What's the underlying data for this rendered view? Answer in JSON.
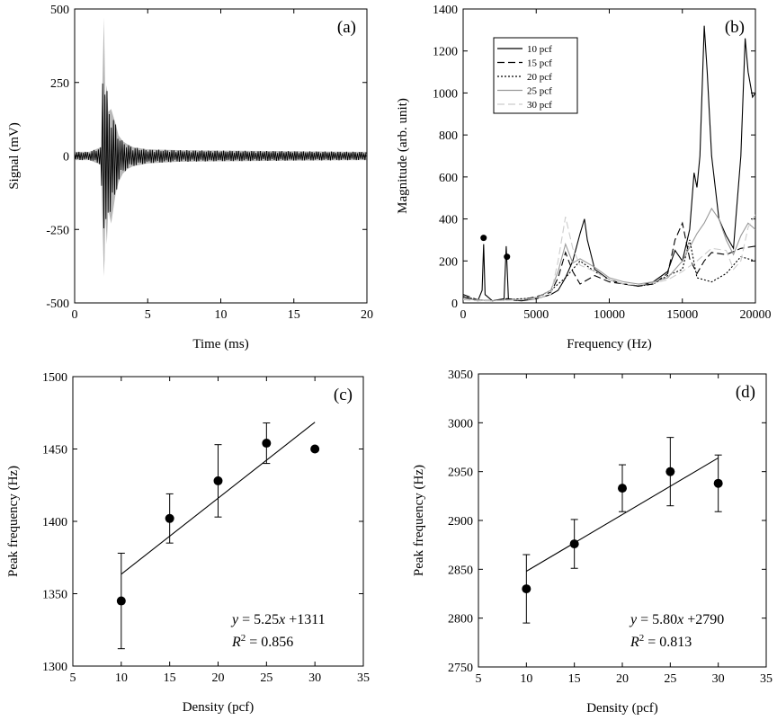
{
  "chart_data": [
    {
      "id": "a",
      "type": "line",
      "panel_label": "(a)",
      "xlabel": "Time (ms)",
      "ylabel": "Signal (mV)",
      "xlim": [
        0,
        20
      ],
      "ylim": [
        -500,
        500
      ],
      "xticks": [
        0,
        5,
        10,
        15,
        20
      ],
      "yticks": [
        -500,
        -250,
        0,
        250,
        500
      ],
      "series": [
        {
          "x": [
            0,
            1,
            1.8,
            2.0,
            2.05,
            2.1,
            2.2,
            2.3,
            2.5,
            2.8,
            3.0,
            3.3,
            3.6,
            4.0,
            5.0,
            7.0,
            10.0,
            15.0,
            20.0
          ],
          "y_upper": [
            14,
            14,
            30,
            470,
            340,
            200,
            240,
            150,
            160,
            110,
            70,
            50,
            40,
            30,
            22,
            20,
            18,
            16,
            14
          ],
          "y_lower": [
            -14,
            -14,
            -30,
            -410,
            -350,
            -200,
            -300,
            -180,
            -230,
            -130,
            -90,
            -60,
            -45,
            -35,
            -25,
            -20,
            -18,
            -16,
            -14
          ]
        }
      ]
    },
    {
      "id": "b",
      "type": "line",
      "panel_label": "(b)",
      "xlabel": "Frequency (Hz)",
      "ylabel": "Magnitude (arb. unit)",
      "xlim": [
        0,
        20000
      ],
      "ylim": [
        0,
        1400
      ],
      "xticks": [
        0,
        5000,
        10000,
        15000,
        20000
      ],
      "yticks": [
        0,
        200,
        400,
        600,
        800,
        1000,
        1200,
        1400
      ],
      "legend": {
        "position": "top-left",
        "entries": [
          "10 pcf",
          "15 pcf",
          "20 pcf",
          "25 pcf",
          "30 pcf"
        ]
      },
      "markers": [
        {
          "x": 1400,
          "y": 310
        },
        {
          "x": 3000,
          "y": 220
        }
      ],
      "series": [
        {
          "name": "10 pcf",
          "color": "#000000",
          "dash": "",
          "x": [
            0,
            500,
            1000,
            1300,
            1400,
            1500,
            2000,
            2800,
            2950,
            3100,
            4000,
            5000,
            6000,
            6500,
            7000,
            7500,
            8000,
            8300,
            8500,
            9000,
            10000,
            11000,
            12000,
            13000,
            14000,
            14500,
            15000,
            15500,
            15800,
            16000,
            16200,
            16500,
            16700,
            17000,
            17500,
            18000,
            18500,
            19000,
            19300,
            19500,
            19800,
            20000
          ],
          "y": [
            30,
            20,
            10,
            60,
            280,
            40,
            10,
            20,
            270,
            15,
            10,
            20,
            40,
            60,
            120,
            200,
            330,
            400,
            300,
            160,
            110,
            90,
            80,
            100,
            150,
            250,
            200,
            350,
            620,
            550,
            700,
            1320,
            1100,
            700,
            400,
            320,
            260,
            700,
            1260,
            1100,
            980,
            1000
          ]
        },
        {
          "name": "15 pcf",
          "color": "#000000",
          "dash": "8,4",
          "x": [
            0,
            1000,
            2000,
            3000,
            4000,
            5000,
            6000,
            6500,
            7000,
            7500,
            8000,
            9000,
            10000,
            11000,
            12000,
            13000,
            14000,
            14500,
            15000,
            15500,
            16000,
            16500,
            17000,
            18000,
            19000,
            20000
          ],
          "y": [
            40,
            15,
            10,
            20,
            15,
            30,
            50,
            120,
            240,
            150,
            90,
            130,
            100,
            90,
            80,
            90,
            140,
            300,
            380,
            210,
            140,
            200,
            240,
            230,
            260,
            270
          ]
        },
        {
          "name": "20 pcf",
          "color": "#000000",
          "dash": "2,2",
          "x": [
            0,
            1000,
            2000,
            3000,
            4000,
            5000,
            6000,
            7000,
            8000,
            9000,
            10000,
            11000,
            12000,
            13000,
            14000,
            15000,
            15500,
            16000,
            17000,
            18000,
            19000,
            20000
          ],
          "y": [
            30,
            15,
            10,
            15,
            20,
            25,
            60,
            120,
            200,
            150,
            110,
            90,
            80,
            90,
            130,
            160,
            300,
            120,
            100,
            140,
            220,
            200
          ]
        },
        {
          "name": "25 pcf",
          "color": "#999999",
          "dash": "",
          "x": [
            0,
            1000,
            2000,
            3000,
            4000,
            5000,
            6000,
            6500,
            7000,
            7500,
            8000,
            9000,
            10000,
            11000,
            12000,
            13000,
            14000,
            15000,
            16000,
            16500,
            17000,
            17500,
            18000,
            18500,
            19000,
            19500,
            20000
          ],
          "y": [
            20,
            15,
            10,
            15,
            15,
            25,
            60,
            150,
            280,
            190,
            210,
            170,
            120,
            100,
            90,
            100,
            120,
            200,
            330,
            380,
            450,
            400,
            300,
            230,
            320,
            380,
            350
          ]
        },
        {
          "name": "30 pcf",
          "color": "#cccccc",
          "dash": "8,4",
          "x": [
            0,
            1000,
            2000,
            3000,
            4000,
            5000,
            6000,
            6500,
            7000,
            7500,
            8000,
            9000,
            10000,
            11000,
            12000,
            13000,
            14000,
            15000,
            16000,
            17000,
            18000,
            18500,
            19000,
            19500,
            20000
          ],
          "y": [
            15,
            10,
            10,
            12,
            15,
            20,
            40,
            200,
            410,
            260,
            180,
            150,
            110,
            90,
            85,
            95,
            110,
            150,
            200,
            260,
            250,
            160,
            200,
            360,
            420
          ]
        }
      ]
    },
    {
      "id": "c",
      "type": "scatter",
      "panel_label": "(c)",
      "xlabel": "Density (pcf)",
      "ylabel": "Peak frequency (Hz)",
      "xlim": [
        5,
        35
      ],
      "ylim": [
        1300,
        1500
      ],
      "xticks": [
        5,
        10,
        15,
        20,
        25,
        30,
        35
      ],
      "yticks": [
        1300,
        1350,
        1400,
        1450,
        1500
      ],
      "points": [
        {
          "x": 10,
          "y": 1345,
          "err": 33
        },
        {
          "x": 15,
          "y": 1402,
          "err": 17
        },
        {
          "x": 20,
          "y": 1428,
          "err": 25
        },
        {
          "x": 25,
          "y": 1454,
          "err": 14
        },
        {
          "x": 30,
          "y": 1450,
          "err": 0
        }
      ],
      "fit": {
        "slope": 5.25,
        "intercept": 1311,
        "x_range": [
          10,
          30
        ]
      },
      "equation": {
        "y_var": "y",
        "eq_text": " = 5.25",
        "x_var": "x",
        "tail": " +1311",
        "r_var": "R",
        "r_exp": "2",
        "r_tail": " = 0.856"
      }
    },
    {
      "id": "d",
      "type": "scatter",
      "panel_label": "(d)",
      "xlabel": "Density (pcf)",
      "ylabel": "Peak frequency (Hz)",
      "xlim": [
        5,
        35
      ],
      "ylim": [
        2750,
        3050
      ],
      "xticks": [
        5,
        10,
        15,
        20,
        25,
        30,
        35
      ],
      "yticks": [
        2750,
        2800,
        2850,
        2900,
        2950,
        3000,
        3050
      ],
      "points": [
        {
          "x": 10,
          "y": 2830,
          "err": 35
        },
        {
          "x": 15,
          "y": 2876,
          "err": 25
        },
        {
          "x": 20,
          "y": 2933,
          "err": 24
        },
        {
          "x": 25,
          "y": 2950,
          "err": 35
        },
        {
          "x": 30,
          "y": 2938,
          "err": 29
        }
      ],
      "fit": {
        "slope": 5.8,
        "intercept": 2790,
        "x_range": [
          10,
          30
        ]
      },
      "equation": {
        "y_var": "y",
        "eq_text": " = 5.80",
        "x_var": "x",
        "tail": " +2790",
        "r_var": "R",
        "r_exp": "2",
        "r_tail": " = 0.813"
      }
    }
  ]
}
